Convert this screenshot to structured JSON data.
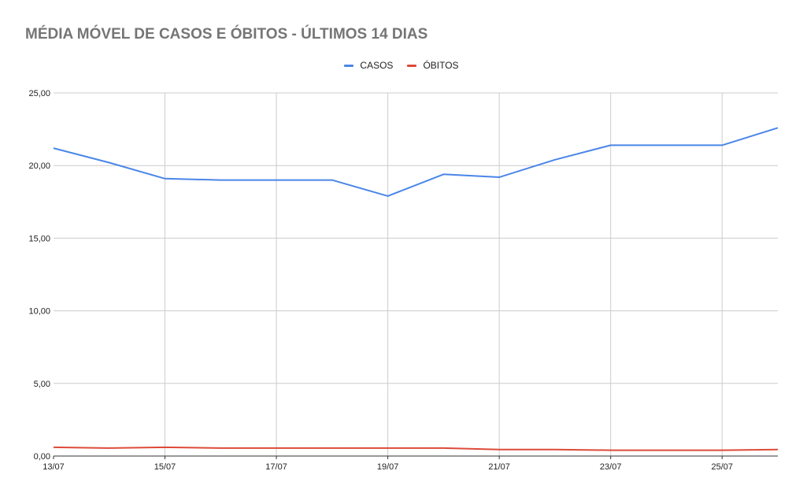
{
  "chart_data": {
    "type": "line",
    "title": "MÉDIA MÓVEL DE CASOS E ÓBITOS - ÚLTIMOS 14 DIAS",
    "x": [
      "13/07",
      "14/07",
      "15/07",
      "16/07",
      "17/07",
      "18/07",
      "19/07",
      "20/07",
      "21/07",
      "22/07",
      "23/07",
      "24/07",
      "25/07",
      "26/07"
    ],
    "x_tick_labels": [
      "13/07",
      "15/07",
      "17/07",
      "19/07",
      "21/07",
      "23/07",
      "25/07"
    ],
    "y_tick_labels": [
      "0,00",
      "5,00",
      "10,00",
      "15,00",
      "20,00",
      "25,00"
    ],
    "ylim": [
      0,
      25
    ],
    "grid": true,
    "legend_position": "top-center",
    "series": [
      {
        "name": "CASOS",
        "color": "#4a86e8",
        "values": [
          21.2,
          20.2,
          19.1,
          19.0,
          19.0,
          19.0,
          17.9,
          19.4,
          19.2,
          20.4,
          21.4,
          21.4,
          21.4,
          22.6
        ]
      },
      {
        "name": "ÓBITOS",
        "color": "#dd4b39",
        "values": [
          0.6,
          0.55,
          0.6,
          0.55,
          0.55,
          0.55,
          0.55,
          0.55,
          0.45,
          0.45,
          0.4,
          0.4,
          0.4,
          0.45
        ]
      }
    ]
  }
}
